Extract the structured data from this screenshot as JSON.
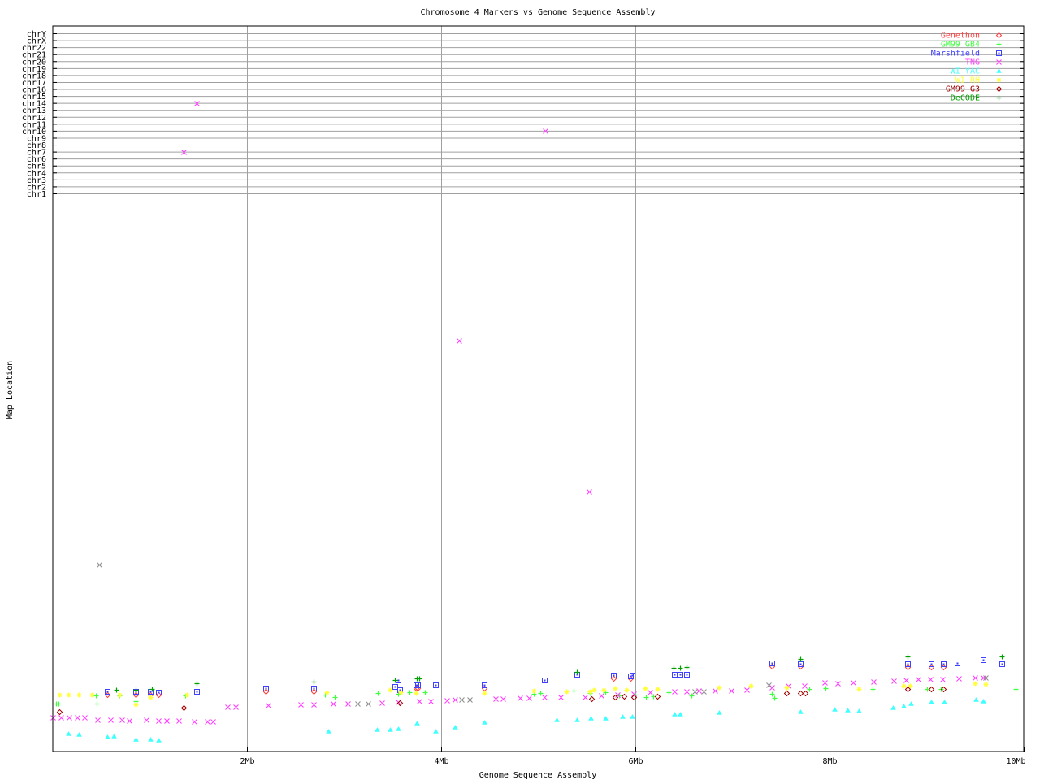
{
  "chart_data": {
    "type": "scatter",
    "title": "Chromosome 4 Markers vs Genome Sequence Assembly",
    "xlabel": "Genome Sequence Assembly",
    "ylabel": "Map Location",
    "xlim": [
      0,
      10
    ],
    "x_ticks": [
      {
        "v": 2,
        "label": "2Mb"
      },
      {
        "v": 4,
        "label": "4Mb"
      },
      {
        "v": 6,
        "label": "6Mb"
      },
      {
        "v": 8,
        "label": "8Mb"
      },
      {
        "v": 10,
        "label": "10Mb"
      }
    ],
    "chromosome_rows": [
      "chrY",
      "chrX",
      "chr22",
      "chr21",
      "chr20",
      "chr19",
      "chr18",
      "chr17",
      "chr16",
      "chr15",
      "chr14",
      "chr13",
      "chr12",
      "chr11",
      "chr10",
      "chr9",
      "chr8",
      "chr7",
      "chr6",
      "chr5",
      "chr4",
      "chr3",
      "chr2",
      "chr1"
    ],
    "ylim": [
      0,
      100
    ],
    "grid": true,
    "legend_position": "top-right",
    "series": [
      {
        "name": "Genethon",
        "color": "#ff4040",
        "marker": "diamond",
        "points": [
          [
            0.56,
            10.3
          ],
          [
            0.85,
            10.3
          ],
          [
            1.0,
            10.3
          ],
          [
            1.09,
            10.3
          ],
          [
            2.19,
            10.9
          ],
          [
            2.69,
            10.9
          ],
          [
            3.74,
            11.5
          ],
          [
            3.76,
            11.5
          ],
          [
            4.44,
            11.5
          ],
          [
            5.77,
            13.2
          ],
          [
            5.95,
            13.2
          ],
          [
            7.41,
            15.4
          ],
          [
            7.7,
            15.4
          ],
          [
            8.8,
            15.3
          ],
          [
            9.05,
            15.3
          ],
          [
            9.17,
            15.3
          ]
        ]
      },
      {
        "name": "GM99 GB4",
        "color": "#40ff40",
        "marker": "plus",
        "points": [
          [
            0.03,
            8.7
          ],
          [
            0.06,
            8.7
          ],
          [
            0.44,
            10.1
          ],
          [
            0.45,
            8.7
          ],
          [
            0.69,
            10.1
          ],
          [
            0.85,
            9.1
          ],
          [
            1.36,
            10.1
          ],
          [
            2.8,
            10.3
          ],
          [
            2.9,
            9.9
          ],
          [
            3.35,
            10.6
          ],
          [
            3.56,
            10.4
          ],
          [
            3.67,
            10.7
          ],
          [
            3.83,
            10.7
          ],
          [
            4.95,
            10.4
          ],
          [
            5.02,
            10.6
          ],
          [
            5.36,
            11.0
          ],
          [
            5.53,
            10.6
          ],
          [
            5.69,
            10.7
          ],
          [
            5.83,
            10.1
          ],
          [
            6.0,
            10.3
          ],
          [
            6.11,
            9.9
          ],
          [
            6.18,
            10.0
          ],
          [
            6.34,
            10.7
          ],
          [
            6.58,
            10.1
          ],
          [
            7.41,
            10.4
          ],
          [
            7.43,
            9.7
          ],
          [
            7.79,
            11.3
          ],
          [
            7.96,
            11.5
          ],
          [
            8.44,
            11.3
          ],
          [
            9.0,
            11.3
          ],
          [
            9.15,
            11.3
          ],
          [
            9.92,
            11.3
          ]
        ]
      },
      {
        "name": "Marshfield",
        "color": "#4040ff",
        "marker": "square",
        "points": [
          [
            0.56,
            10.9
          ],
          [
            0.85,
            10.9
          ],
          [
            1.0,
            10.9
          ],
          [
            1.09,
            10.7
          ],
          [
            1.48,
            10.9
          ],
          [
            2.19,
            11.5
          ],
          [
            2.69,
            11.5
          ],
          [
            3.52,
            11.8
          ],
          [
            3.56,
            12.9
          ],
          [
            3.57,
            11.2
          ],
          [
            3.74,
            12.1
          ],
          [
            3.76,
            12.1
          ],
          [
            3.94,
            12.1
          ],
          [
            4.44,
            12.1
          ],
          [
            5.06,
            12.9
          ],
          [
            5.4,
            14.0
          ],
          [
            5.77,
            13.8
          ],
          [
            5.95,
            13.7
          ],
          [
            5.97,
            13.8
          ],
          [
            6.4,
            14.0
          ],
          [
            6.46,
            14.0
          ],
          [
            6.53,
            14.0
          ],
          [
            7.41,
            16.0
          ],
          [
            7.7,
            15.9
          ],
          [
            8.8,
            15.9
          ],
          [
            9.05,
            15.9
          ],
          [
            9.17,
            15.9
          ],
          [
            9.31,
            16.0
          ],
          [
            9.58,
            16.6
          ],
          [
            9.77,
            15.9
          ]
        ]
      },
      {
        "name": "TNG",
        "color": "#ff40ff",
        "marker": "x",
        "points": [
          [
            0,
            6.2
          ],
          [
            0.08,
            6.2
          ],
          [
            0.17,
            6.2
          ],
          [
            0.25,
            6.2
          ],
          [
            0.33,
            6.2
          ],
          [
            0.46,
            5.8
          ],
          [
            0.59,
            5.8
          ],
          [
            0.71,
            5.8
          ],
          [
            0.79,
            5.6
          ],
          [
            0.96,
            5.8
          ],
          [
            1.09,
            5.6
          ],
          [
            1.17,
            5.6
          ],
          [
            1.3,
            5.6
          ],
          [
            1.46,
            5.4
          ],
          [
            1.59,
            5.4
          ],
          [
            1.65,
            5.4
          ],
          [
            1.8,
            8.1
          ],
          [
            1.88,
            8.1
          ],
          [
            2.22,
            8.4
          ],
          [
            2.55,
            8.5
          ],
          [
            2.69,
            8.5
          ],
          [
            2.89,
            8.7
          ],
          [
            3.04,
            8.7
          ],
          [
            3.39,
            8.8
          ],
          [
            3.56,
            9.0
          ],
          [
            3.77,
            9.1
          ],
          [
            3.89,
            9.1
          ],
          [
            4.06,
            9.3
          ],
          [
            4.14,
            9.4
          ],
          [
            4.56,
            9.6
          ],
          [
            4.64,
            9.6
          ],
          [
            4.81,
            9.7
          ],
          [
            4.9,
            9.7
          ],
          [
            5.06,
            9.9
          ],
          [
            5.23,
            9.9
          ],
          [
            5.48,
            9.9
          ],
          [
            5.65,
            10.1
          ],
          [
            5.82,
            10.3
          ],
          [
            5.98,
            10.4
          ],
          [
            6.15,
            10.7
          ],
          [
            6.4,
            10.9
          ],
          [
            6.53,
            10.9
          ],
          [
            6.65,
            11.0
          ],
          [
            6.82,
            11.0
          ],
          [
            6.99,
            11.0
          ],
          [
            7.15,
            11.2
          ],
          [
            7.41,
            11.6
          ],
          [
            7.57,
            11.9
          ],
          [
            7.74,
            11.9
          ],
          [
            7.95,
            12.5
          ],
          [
            8.08,
            12.4
          ],
          [
            8.24,
            12.5
          ],
          [
            8.45,
            12.6
          ],
          [
            8.66,
            12.8
          ],
          [
            8.79,
            12.9
          ],
          [
            8.91,
            13.1
          ],
          [
            9.04,
            13.1
          ],
          [
            9.16,
            13.1
          ],
          [
            9.33,
            13.2
          ],
          [
            9.5,
            13.4
          ],
          [
            9.58,
            13.4
          ],
          [
            4.18,
            74.4
          ],
          [
            5.52,
            47.1
          ],
          {
            "x": 1.48,
            "chr": "chr14"
          },
          {
            "x": 1.35,
            "chr": "chr7"
          },
          {
            "x": 5.07,
            "chr": "chr10"
          }
        ]
      },
      {
        "name": "WI YAC",
        "color": "#40ffff",
        "marker": "triangle",
        "points": [
          [
            0.16,
            3.2
          ],
          [
            0.27,
            3.1
          ],
          [
            0.56,
            2.6
          ],
          [
            0.63,
            2.8
          ],
          [
            0.85,
            2.2
          ],
          [
            1.0,
            2.2
          ],
          [
            1.09,
            2.1
          ],
          [
            2.84,
            3.7
          ],
          [
            3.34,
            4.0
          ],
          [
            3.47,
            4.0
          ],
          [
            3.56,
            4.1
          ],
          [
            3.75,
            5.1
          ],
          [
            3.94,
            3.7
          ],
          [
            4.14,
            4.4
          ],
          [
            4.44,
            5.3
          ],
          [
            5.19,
            5.7
          ],
          [
            5.4,
            5.7
          ],
          [
            5.54,
            6.0
          ],
          [
            5.69,
            6.0
          ],
          [
            5.87,
            6.3
          ],
          [
            5.97,
            6.3
          ],
          [
            6.4,
            6.8
          ],
          [
            6.46,
            6.8
          ],
          [
            6.86,
            7.1
          ],
          [
            7.7,
            7.2
          ],
          [
            8.05,
            7.6
          ],
          [
            8.18,
            7.5
          ],
          [
            8.3,
            7.4
          ],
          [
            8.65,
            7.9
          ],
          [
            8.76,
            8.2
          ],
          [
            8.84,
            8.7
          ],
          [
            9.05,
            9.0
          ],
          [
            9.18,
            9.0
          ],
          [
            9.51,
            9.4
          ],
          [
            9.58,
            9.1
          ]
        ]
      },
      {
        "name": "WI RH",
        "color": "#ffff40",
        "marker": "star",
        "points": [
          [
            0.07,
            10.3
          ],
          [
            0.16,
            10.3
          ],
          [
            0.27,
            10.3
          ],
          [
            0.4,
            10.3
          ],
          [
            0.69,
            10.3
          ],
          [
            0.85,
            8.5
          ],
          [
            1.0,
            9.9
          ],
          [
            1.38,
            10.3
          ],
          [
            2.82,
            10.7
          ],
          [
            3.47,
            11.2
          ],
          [
            3.58,
            10.7
          ],
          [
            3.74,
            10.6
          ],
          [
            4.44,
            10.6
          ],
          [
            4.95,
            11.0
          ],
          [
            5.29,
            10.9
          ],
          [
            5.53,
            10.9
          ],
          [
            5.57,
            11.2
          ],
          [
            5.67,
            11.2
          ],
          [
            5.79,
            11.5
          ],
          [
            5.91,
            11.2
          ],
          [
            6.1,
            11.5
          ],
          [
            6.23,
            11.3
          ],
          [
            6.86,
            11.6
          ],
          [
            7.19,
            11.9
          ],
          [
            7.56,
            11.6
          ],
          [
            8.3,
            11.3
          ],
          [
            8.76,
            11.9
          ],
          [
            8.83,
            11.9
          ],
          [
            9.5,
            12.4
          ],
          [
            9.61,
            12.2
          ]
        ]
      },
      {
        "name": "GM99 G3",
        "color": "#a00000",
        "marker": "diamond",
        "points": [
          [
            0.07,
            7.2
          ],
          [
            1.35,
            7.9
          ],
          [
            3.57,
            8.8
          ],
          [
            5.55,
            9.6
          ],
          [
            5.79,
            9.9
          ],
          [
            5.88,
            10.0
          ],
          [
            5.98,
            9.9
          ],
          [
            6.23,
            10.0
          ],
          [
            7.56,
            10.6
          ],
          [
            7.7,
            10.6
          ],
          [
            7.75,
            10.6
          ],
          [
            8.8,
            11.3
          ],
          [
            9.05,
            11.3
          ],
          [
            9.17,
            11.3
          ]
        ]
      },
      {
        "name": "DeCODE",
        "color": "#00a000",
        "marker": "plus",
        "points": [
          [
            0.65,
            11.2
          ],
          [
            0.85,
            11.2
          ],
          [
            1.02,
            11.3
          ],
          [
            1.48,
            12.4
          ],
          [
            2.69,
            12.6
          ],
          [
            3.52,
            12.9
          ],
          [
            3.75,
            13.2
          ],
          [
            3.77,
            13.2
          ],
          [
            5.4,
            14.4
          ],
          [
            6.39,
            15.1
          ],
          [
            6.46,
            15.1
          ],
          [
            6.53,
            15.3
          ],
          [
            7.7,
            16.8
          ],
          [
            8.8,
            17.2
          ],
          [
            9.77,
            17.2
          ]
        ]
      },
      {
        "color": "#909090",
        "marker": "x",
        "points": [
          [
            0.48,
            33.8
          ],
          [
            3.14,
            8.7
          ],
          [
            3.25,
            8.7
          ],
          [
            4.21,
            9.4
          ],
          [
            4.29,
            9.4
          ],
          [
            6.61,
            10.9
          ],
          [
            6.7,
            10.9
          ],
          [
            7.37,
            12.1
          ],
          [
            9.61,
            13.4
          ]
        ]
      }
    ]
  }
}
